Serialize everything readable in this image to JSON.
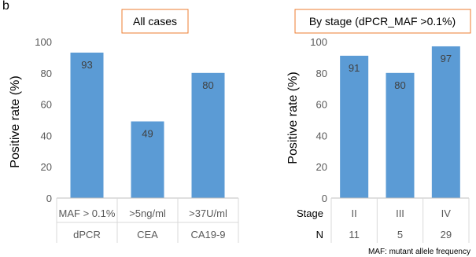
{
  "figure_label": "b",
  "footnote": "MAF: mutant allele frequency",
  "colors": {
    "bar": "#5b9bd5",
    "title_border": "#ed7d31",
    "gridline": "#d9d9d9"
  },
  "chart_data": [
    {
      "type": "bar",
      "title": "All cases",
      "ylabel": "Positive rate (%)",
      "xlabel": "",
      "ylim": [
        0,
        100
      ],
      "yticks": [
        0,
        20,
        40,
        60,
        80,
        100
      ],
      "categories": [
        "MAF > 0.1%",
        ">5ng/ml",
        ">37U/ml"
      ],
      "category_groups": [
        "dPCR",
        "CEA",
        "CA19-9"
      ],
      "values": [
        93,
        49,
        80
      ],
      "grid": false
    },
    {
      "type": "bar",
      "title": "By stage (dPCR_MAF >0.1%)",
      "ylabel": "Positive rate (%)",
      "xlabel": "",
      "ylim": [
        0,
        100
      ],
      "yticks": [
        0,
        20,
        40,
        60,
        80,
        100
      ],
      "row_labels": [
        "Stage",
        "N"
      ],
      "categories": [
        "II",
        "III",
        "IV"
      ],
      "counts": [
        "11",
        "5",
        "29"
      ],
      "values": [
        91,
        80,
        97
      ],
      "grid": false
    }
  ]
}
